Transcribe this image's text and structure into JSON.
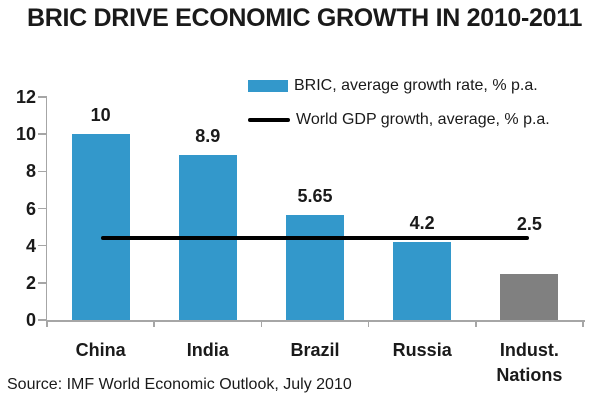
{
  "title": "BRIC DRIVE ECONOMIC GROWTH IN 2010-2011",
  "source": "Source: IMF World Economic Outlook, July 2010",
  "legend": {
    "bar_label": "BRIC, average growth rate, % p.a.",
    "line_label": "World GDP growth, average, % p.a."
  },
  "colors": {
    "bric_blue": "#3398CB",
    "industrial_gray": "#808080",
    "line_black": "#000000",
    "axis_gray": "#A6A6A6",
    "text_dark": "#1A1A1A"
  },
  "chart_data": {
    "type": "bar",
    "title": "BRIC DRIVE ECONOMIC GROWTH IN 2010-2011",
    "categories": [
      "China",
      "India",
      "Brazil",
      "Russia",
      "Indust. Nations"
    ],
    "values": [
      10,
      8.9,
      5.65,
      4.2,
      2.5
    ],
    "data_labels": [
      "10",
      "8.9",
      "5.65",
      "4.2",
      "2.5"
    ],
    "bar_colors": [
      "#3398CB",
      "#3398CB",
      "#3398CB",
      "#3398CB",
      "#808080"
    ],
    "series": [
      {
        "name": "BRIC, average growth rate, % p.a.",
        "type": "bar",
        "values": [
          10,
          8.9,
          5.65,
          4.2,
          2.5
        ]
      },
      {
        "name": "World GDP growth, average, % p.a.",
        "type": "reference-line",
        "value": 4.4
      }
    ],
    "reference_line": {
      "name": "World GDP growth, average, % p.a.",
      "value": 4.4,
      "label": "",
      "color": "#000000"
    },
    "xlabel": "",
    "ylabel": "",
    "ylim": [
      0,
      12
    ],
    "yticks": [
      0,
      2,
      4,
      6,
      8,
      10,
      12
    ],
    "grid": false,
    "legend_position": "top-right",
    "source": "Source: IMF World Economic Outlook, July 2010"
  }
}
